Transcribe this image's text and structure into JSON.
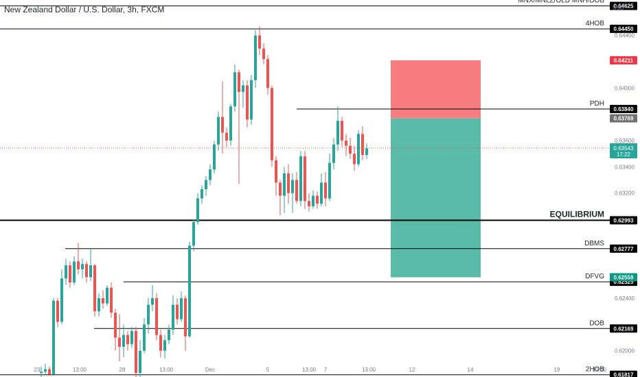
{
  "header": {
    "title": "New Zealand Dollar / U.S. Dollar, 3h, FXCM",
    "currency": "USD"
  },
  "colors": {
    "up": "#26a69a",
    "down": "#ef5350",
    "stop_zone": "#f77c80",
    "target_zone": "#59bba8",
    "line": "#000000",
    "axis_text": "#787b86",
    "current_price_line": "#ef5350"
  },
  "chart_data": {
    "type": "candlestick",
    "y_axis": {
      "range": [
        0.618,
        0.6467
      ],
      "ticks": [
        "0.62000",
        "0.62400",
        "0.63200",
        "0.63400",
        "0.63600",
        "0.64000",
        "0.64400"
      ]
    },
    "x_axis": {
      "ticks": [
        "23",
        "13:00",
        "28",
        "13:00",
        "Dec",
        "5",
        "13:00",
        "7",
        "13:00",
        "12",
        "14",
        "19",
        "13:00"
      ]
    },
    "levels": [
      {
        "label": "MNX/MNLZ/OLD MNH/DOB",
        "price": "0.64625",
        "from": "start",
        "bold": false
      },
      {
        "label": "4HOB",
        "price": "0.64450",
        "from": "start",
        "bold": false
      },
      {
        "label": "PDH",
        "price": "0.63840",
        "from": "Dec 6",
        "bold": false
      },
      {
        "label": "EQUILIBRIUM",
        "price": "0.62993",
        "from": "start",
        "bold": true
      },
      {
        "label": "DBMS",
        "price": "0.62777",
        "from": "Nov 25",
        "bold": false
      },
      {
        "label": "DFVG",
        "price": "0.62525",
        "from": "Nov 27",
        "bold": false
      },
      {
        "label": "DOB",
        "price": "0.62169",
        "from": "Nov 26",
        "bold": false
      },
      {
        "label": "2HOB",
        "price": "0.61817",
        "from": "start",
        "bold": false
      }
    ],
    "position": {
      "stop": "0.64211",
      "entry": "0.63769",
      "target": "0.62559"
    },
    "current_price": {
      "price": "0.63543",
      "countdown": "17:22"
    },
    "candles": [
      {
        "o": 0.6183,
        "h": 0.6188,
        "l": 0.618,
        "c": 0.6184
      },
      {
        "o": 0.6184,
        "h": 0.619,
        "l": 0.6182,
        "c": 0.6186
      },
      {
        "o": 0.6186,
        "h": 0.6188,
        "l": 0.6181,
        "c": 0.6182
      },
      {
        "o": 0.6182,
        "h": 0.624,
        "l": 0.6181,
        "c": 0.6238
      },
      {
        "o": 0.6238,
        "h": 0.624,
        "l": 0.6218,
        "c": 0.6222
      },
      {
        "o": 0.6222,
        "h": 0.6262,
        "l": 0.622,
        "c": 0.6255
      },
      {
        "o": 0.6255,
        "h": 0.627,
        "l": 0.625,
        "c": 0.6265
      },
      {
        "o": 0.6265,
        "h": 0.6268,
        "l": 0.6248,
        "c": 0.6252
      },
      {
        "o": 0.6252,
        "h": 0.6272,
        "l": 0.625,
        "c": 0.6268
      },
      {
        "o": 0.6268,
        "h": 0.6282,
        "l": 0.6258,
        "c": 0.6262
      },
      {
        "o": 0.6262,
        "h": 0.627,
        "l": 0.6255,
        "c": 0.6266
      },
      {
        "o": 0.6266,
        "h": 0.6268,
        "l": 0.6252,
        "c": 0.6256
      },
      {
        "o": 0.6256,
        "h": 0.6278,
        "l": 0.6253,
        "c": 0.6265
      },
      {
        "o": 0.6265,
        "h": 0.6266,
        "l": 0.6226,
        "c": 0.623
      },
      {
        "o": 0.623,
        "h": 0.6244,
        "l": 0.6226,
        "c": 0.624
      },
      {
        "o": 0.624,
        "h": 0.6246,
        "l": 0.6232,
        "c": 0.6236
      },
      {
        "o": 0.6236,
        "h": 0.625,
        "l": 0.6234,
        "c": 0.6248
      },
      {
        "o": 0.6248,
        "h": 0.6252,
        "l": 0.6225,
        "c": 0.6229
      },
      {
        "o": 0.6229,
        "h": 0.6232,
        "l": 0.62,
        "c": 0.621
      },
      {
        "o": 0.621,
        "h": 0.6228,
        "l": 0.6192,
        "c": 0.6203
      },
      {
        "o": 0.6203,
        "h": 0.622,
        "l": 0.6195,
        "c": 0.6212
      },
      {
        "o": 0.6212,
        "h": 0.6215,
        "l": 0.62,
        "c": 0.6205
      },
      {
        "o": 0.6205,
        "h": 0.6218,
        "l": 0.6202,
        "c": 0.6215
      },
      {
        "o": 0.6215,
        "h": 0.6218,
        "l": 0.618,
        "c": 0.6183
      },
      {
        "o": 0.6183,
        "h": 0.6208,
        "l": 0.618,
        "c": 0.62
      },
      {
        "o": 0.62,
        "h": 0.6225,
        "l": 0.6198,
        "c": 0.622
      },
      {
        "o": 0.622,
        "h": 0.624,
        "l": 0.6213,
        "c": 0.6235
      },
      {
        "o": 0.6235,
        "h": 0.625,
        "l": 0.623,
        "c": 0.624
      },
      {
        "o": 0.624,
        "h": 0.6244,
        "l": 0.6208,
        "c": 0.6212
      },
      {
        "o": 0.6212,
        "h": 0.6216,
        "l": 0.6195,
        "c": 0.62
      },
      {
        "o": 0.62,
        "h": 0.6212,
        "l": 0.6194,
        "c": 0.6208
      },
      {
        "o": 0.6208,
        "h": 0.622,
        "l": 0.6205,
        "c": 0.6216
      },
      {
        "o": 0.6216,
        "h": 0.6242,
        "l": 0.6212,
        "c": 0.6235
      },
      {
        "o": 0.6235,
        "h": 0.624,
        "l": 0.622,
        "c": 0.6224
      },
      {
        "o": 0.6224,
        "h": 0.6245,
        "l": 0.6222,
        "c": 0.624
      },
      {
        "o": 0.624,
        "h": 0.6242,
        "l": 0.62,
        "c": 0.6211
      },
      {
        "o": 0.6211,
        "h": 0.6283,
        "l": 0.621,
        "c": 0.628
      },
      {
        "o": 0.628,
        "h": 0.63,
        "l": 0.6276,
        "c": 0.6298
      },
      {
        "o": 0.6298,
        "h": 0.632,
        "l": 0.6296,
        "c": 0.6316
      },
      {
        "o": 0.6316,
        "h": 0.6326,
        "l": 0.6312,
        "c": 0.6323
      },
      {
        "o": 0.6323,
        "h": 0.6333,
        "l": 0.6318,
        "c": 0.633
      },
      {
        "o": 0.633,
        "h": 0.6342,
        "l": 0.6326,
        "c": 0.6338
      },
      {
        "o": 0.6338,
        "h": 0.636,
        "l": 0.6335,
        "c": 0.6357
      },
      {
        "o": 0.6357,
        "h": 0.6382,
        "l": 0.6352,
        "c": 0.6378
      },
      {
        "o": 0.6378,
        "h": 0.6405,
        "l": 0.635,
        "c": 0.6366
      },
      {
        "o": 0.6366,
        "h": 0.637,
        "l": 0.6355,
        "c": 0.636
      },
      {
        "o": 0.636,
        "h": 0.6388,
        "l": 0.6356,
        "c": 0.6386
      },
      {
        "o": 0.6386,
        "h": 0.6418,
        "l": 0.6382,
        "c": 0.6412
      },
      {
        "o": 0.6412,
        "h": 0.6414,
        "l": 0.6327,
        "c": 0.6397
      },
      {
        "o": 0.6397,
        "h": 0.6406,
        "l": 0.6385,
        "c": 0.6402
      },
      {
        "o": 0.6402,
        "h": 0.6406,
        "l": 0.637,
        "c": 0.6376
      },
      {
        "o": 0.6376,
        "h": 0.641,
        "l": 0.6372,
        "c": 0.6406
      },
      {
        "o": 0.6406,
        "h": 0.6444,
        "l": 0.64,
        "c": 0.644
      },
      {
        "o": 0.644,
        "h": 0.6447,
        "l": 0.6425,
        "c": 0.643
      },
      {
        "o": 0.643,
        "h": 0.6434,
        "l": 0.6418,
        "c": 0.6422
      },
      {
        "o": 0.6422,
        "h": 0.6425,
        "l": 0.6395,
        "c": 0.64
      },
      {
        "o": 0.64,
        "h": 0.6402,
        "l": 0.634,
        "c": 0.6345
      },
      {
        "o": 0.6345,
        "h": 0.6348,
        "l": 0.6318,
        "c": 0.6328
      },
      {
        "o": 0.6328,
        "h": 0.633,
        "l": 0.6303,
        "c": 0.6318
      },
      {
        "o": 0.6318,
        "h": 0.634,
        "l": 0.6305,
        "c": 0.6335
      },
      {
        "o": 0.6335,
        "h": 0.6342,
        "l": 0.6312,
        "c": 0.632
      },
      {
        "o": 0.632,
        "h": 0.6335,
        "l": 0.6305,
        "c": 0.633
      },
      {
        "o": 0.633,
        "h": 0.6336,
        "l": 0.6312,
        "c": 0.6314
      },
      {
        "o": 0.6314,
        "h": 0.6352,
        "l": 0.631,
        "c": 0.6348
      },
      {
        "o": 0.6348,
        "h": 0.6352,
        "l": 0.6308,
        "c": 0.6314
      },
      {
        "o": 0.6314,
        "h": 0.632,
        "l": 0.6306,
        "c": 0.631
      },
      {
        "o": 0.631,
        "h": 0.6322,
        "l": 0.6308,
        "c": 0.6318
      },
      {
        "o": 0.6318,
        "h": 0.6321,
        "l": 0.6308,
        "c": 0.6312
      },
      {
        "o": 0.6312,
        "h": 0.6335,
        "l": 0.631,
        "c": 0.6328
      },
      {
        "o": 0.6328,
        "h": 0.6336,
        "l": 0.631,
        "c": 0.6316
      },
      {
        "o": 0.6316,
        "h": 0.635,
        "l": 0.6314,
        "c": 0.6343
      },
      {
        "o": 0.6343,
        "h": 0.6362,
        "l": 0.6338,
        "c": 0.6357
      },
      {
        "o": 0.6357,
        "h": 0.6386,
        "l": 0.6352,
        "c": 0.6375
      },
      {
        "o": 0.6375,
        "h": 0.6378,
        "l": 0.6355,
        "c": 0.636
      },
      {
        "o": 0.636,
        "h": 0.6365,
        "l": 0.6348,
        "c": 0.6356
      },
      {
        "o": 0.6356,
        "h": 0.6362,
        "l": 0.6346,
        "c": 0.635
      },
      {
        "o": 0.635,
        "h": 0.6356,
        "l": 0.6337,
        "c": 0.6342
      },
      {
        "o": 0.6342,
        "h": 0.6368,
        "l": 0.634,
        "c": 0.6365
      },
      {
        "o": 0.6365,
        "h": 0.6371,
        "l": 0.6345,
        "c": 0.6349
      },
      {
        "o": 0.6349,
        "h": 0.6358,
        "l": 0.6346,
        "c": 0.6354
      }
    ]
  }
}
